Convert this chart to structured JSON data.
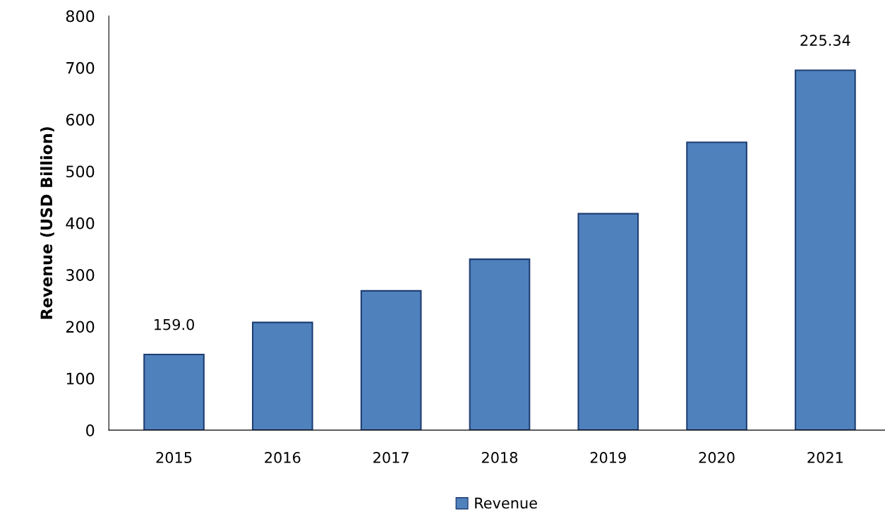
{
  "chart_data": {
    "type": "bar",
    "ylabel": "Revenue (USD Billion)",
    "categories": [
      "2015",
      "2016",
      "2017",
      "2018",
      "2019",
      "2020",
      "2021"
    ],
    "series": [
      {
        "name": "Revenue",
        "color": "#4f81bd",
        "values": [
          146,
          208,
          269,
          330,
          418,
          556,
          695
        ]
      }
    ],
    "ylim": [
      0,
      800
    ],
    "yticks": [
      0,
      100,
      200,
      300,
      400,
      500,
      600,
      700,
      800
    ],
    "annotations": [
      {
        "text": "159.0",
        "x": "2015",
        "y": 146
      },
      {
        "text": "225.34",
        "x": "2021",
        "y": 695
      }
    ],
    "legend": "bottom"
  }
}
